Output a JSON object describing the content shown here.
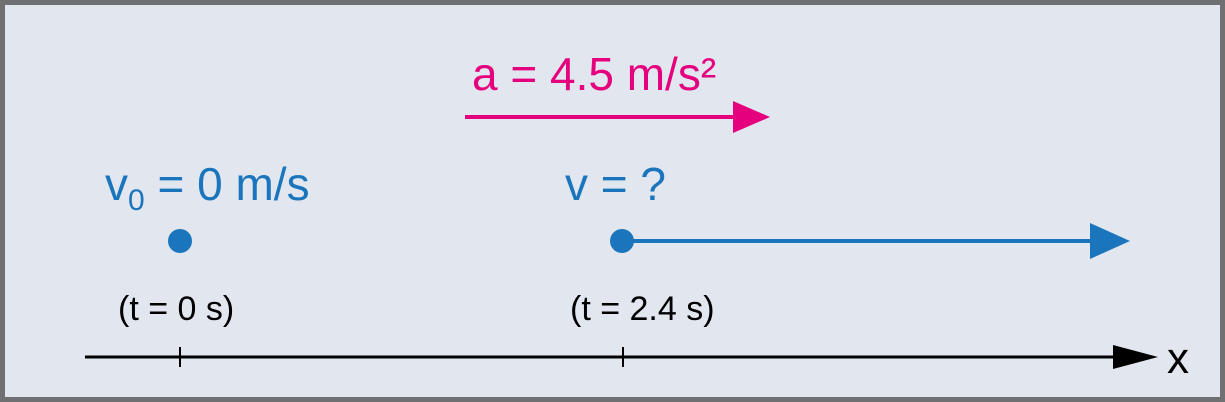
{
  "colors": {
    "background": "#e2e7ef",
    "border": "#6f7072",
    "acceleration": "#e5007e",
    "velocity": "#1b75bc",
    "axis": "#000000"
  },
  "acceleration": {
    "label": "a = 4.5 m/s²"
  },
  "initial_state": {
    "velocity_symbol": "v",
    "velocity_subscript": "0",
    "velocity_value": " = 0 m/s",
    "time_label": "(t = 0 s)"
  },
  "final_state": {
    "velocity_label": "v = ?",
    "time_label": "(t = 2.4 s)"
  },
  "axis": {
    "label": "x"
  },
  "icons": {
    "initial_position": "dot-icon",
    "final_velocity": "arrow-right-icon",
    "acceleration": "arrow-right-icon"
  }
}
